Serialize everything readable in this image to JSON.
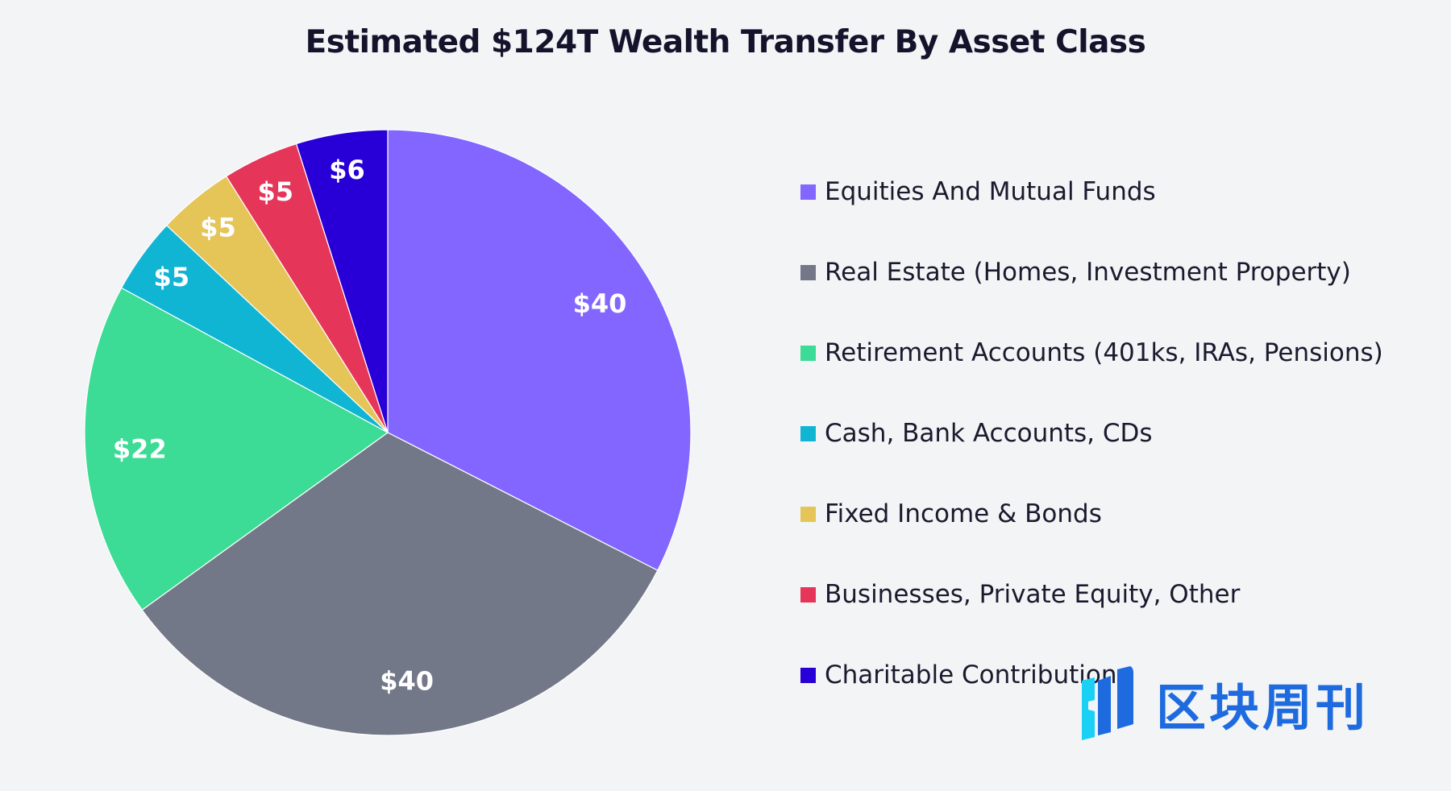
{
  "chart_data": {
    "type": "pie",
    "title": "Estimated $124T Wealth Transfer By Asset Class",
    "categories": [
      "Equities And Mutual Funds",
      "Real Estate (Homes, Investment Property)",
      "Retirement Accounts (401ks, IRAs, Pensions)",
      "Cash, Bank Accounts, CDs",
      "Fixed Income & Bonds",
      "Businesses, Private Equity, Other",
      "Charitable Contributions"
    ],
    "values": [
      40,
      40,
      22,
      5,
      5,
      5,
      6
    ],
    "data_labels": [
      "$40",
      "$40",
      "$22",
      "$5",
      "$5",
      "$5",
      "$6"
    ],
    "colors": [
      "#8266ff",
      "#737888",
      "#3cdb96",
      "#11b5d4",
      "#e5c458",
      "#e5365a",
      "#2800d7"
    ],
    "start": "top",
    "direction": "clockwise",
    "legend_position": "right"
  },
  "watermark": {
    "text": "区块周刊"
  }
}
